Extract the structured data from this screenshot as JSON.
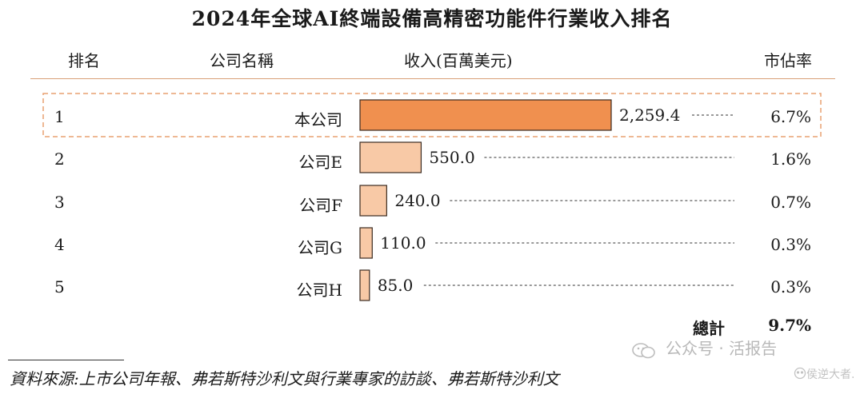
{
  "title": "2024年全球AI終端設備高精密功能件行業收入排名",
  "headers": {
    "rank": "排名",
    "company": "公司名稱",
    "revenue": "收入(百萬美元)",
    "share": "市佔率"
  },
  "rows": [
    {
      "rank": "1",
      "company": "本公司",
      "revenue_label": "2,259.4",
      "share": "6.7%"
    },
    {
      "rank": "2",
      "company": "公司E",
      "revenue_label": "550.0",
      "share": "1.6%"
    },
    {
      "rank": "3",
      "company": "公司F",
      "revenue_label": "240.0",
      "share": "0.7%"
    },
    {
      "rank": "4",
      "company": "公司G",
      "revenue_label": "110.0",
      "share": "0.3%"
    },
    {
      "rank": "5",
      "company": "公司H",
      "revenue_label": "85.0",
      "share": "0.3%"
    }
  ],
  "total": {
    "label": "總計",
    "value": "9.7%"
  },
  "source": "資料來源:上市公司年報、弗若斯特沙利文與行業專家的訪談、弗若斯特沙利文",
  "watermark": {
    "text": "公众号 · 活报告",
    "sub": "侯逆大者."
  },
  "colors": {
    "highlight_bar": "#f0904f",
    "other_bar": "#f8c9a6",
    "bar_stroke": "#3a2a20",
    "highlight_box": "#e9a070",
    "rule": "#d9a077"
  },
  "chart_data": {
    "type": "bar",
    "orientation": "horizontal",
    "title": "2024年全球AI終端設備高精密功能件行業收入排名",
    "categories": [
      "本公司",
      "公司E",
      "公司F",
      "公司G",
      "公司H"
    ],
    "values": [
      2259.4,
      550.0,
      240.0,
      110.0,
      85.0
    ],
    "xlabel": "收入(百萬美元)",
    "ylabel": "",
    "shares": [
      "6.7%",
      "1.6%",
      "0.7%",
      "0.3%",
      "0.3%"
    ],
    "highlight_index": 0,
    "grid": false
  }
}
